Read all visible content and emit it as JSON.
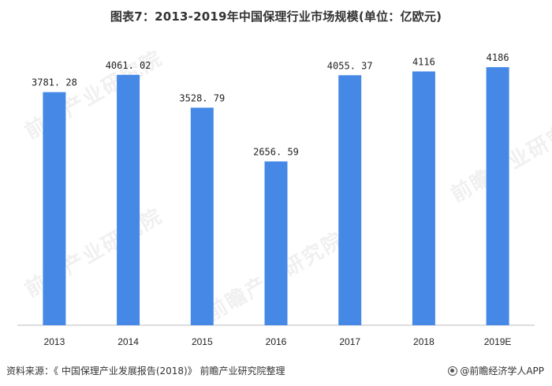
{
  "title": "图表7：2013-2019年中国保理行业市场规模(单位：亿欧元)",
  "source_text": "资料来源：《 中国保理产业发展报告(2018)》 前瞻产业研究院整理",
  "brand_text": "@前瞻经济学人APP",
  "watermark_text": "前瞻产业研究院",
  "colors": {
    "bar": "#4588E6",
    "axis": "#bbbbbb"
  },
  "chart_data": {
    "type": "bar",
    "categories": [
      "2013",
      "2014",
      "2015",
      "2016",
      "2017",
      "2018",
      "2019E"
    ],
    "values": [
      3781.28,
      4061.02,
      3528.79,
      2656.59,
      4055.37,
      4116,
      4186
    ],
    "value_labels": [
      "3781. 28",
      "4061. 02",
      "3528. 79",
      "2656. 59",
      "4055. 37",
      "4116",
      "4186"
    ],
    "title": "图表7：2013-2019年中国保理行业市场规模(单位：亿欧元)",
    "xlabel": "",
    "ylabel": "",
    "ylim": [
      0,
      4800
    ],
    "grid": false,
    "legend": "none"
  }
}
